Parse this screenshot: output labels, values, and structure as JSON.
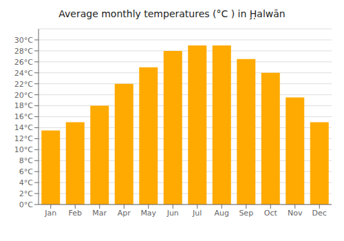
{
  "chart_data": {
    "type": "bar",
    "title": "Average monthly temperatures (°C ) in Ḩ̣alwān",
    "categories": [
      "Jan",
      "Feb",
      "Mar",
      "Apr",
      "May",
      "Jun",
      "Jul",
      "Aug",
      "Sep",
      "Oct",
      "Nov",
      "Dec"
    ],
    "values": [
      13.5,
      15.0,
      18.0,
      22.0,
      25.0,
      28.0,
      29.0,
      29.0,
      26.5,
      24.0,
      19.5,
      15.0
    ],
    "color": "#FFAA00",
    "ylim": [
      0,
      32
    ],
    "yticks": [
      {
        "value": 0,
        "label": "0°C"
      },
      {
        "value": 2,
        "label": "2°C"
      },
      {
        "value": 4,
        "label": "4°C"
      },
      {
        "value": 6,
        "label": "6°C"
      },
      {
        "value": 8,
        "label": "8°C"
      },
      {
        "value": 10,
        "label": "10°C"
      },
      {
        "value": 12,
        "label": "12°C"
      },
      {
        "value": 14,
        "label": "14°C"
      },
      {
        "value": 16,
        "label": "16°C"
      },
      {
        "value": 18,
        "label": "18°C"
      },
      {
        "value": 20,
        "label": "20°C"
      },
      {
        "value": 22,
        "label": "22°C"
      },
      {
        "value": 24,
        "label": "24°C"
      },
      {
        "value": 26,
        "label": "26°C"
      },
      {
        "value": 28,
        "label": "28°C"
      },
      {
        "value": 30,
        "label": "30°C"
      }
    ],
    "grid": true
  }
}
